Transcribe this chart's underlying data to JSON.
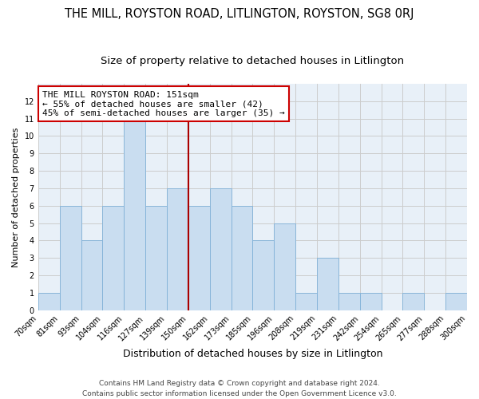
{
  "title": "THE MILL, ROYSTON ROAD, LITLINGTON, ROYSTON, SG8 0RJ",
  "subtitle": "Size of property relative to detached houses in Litlington",
  "xlabel": "Distribution of detached houses by size in Litlington",
  "ylabel": "Number of detached properties",
  "bin_edges": [
    "70sqm",
    "81sqm",
    "93sqm",
    "104sqm",
    "116sqm",
    "127sqm",
    "139sqm",
    "150sqm",
    "162sqm",
    "173sqm",
    "185sqm",
    "196sqm",
    "208sqm",
    "219sqm",
    "231sqm",
    "242sqm",
    "254sqm",
    "265sqm",
    "277sqm",
    "288sqm",
    "300sqm"
  ],
  "bar_values": [
    1,
    6,
    4,
    6,
    11,
    6,
    7,
    6,
    7,
    6,
    4,
    5,
    1,
    3,
    1,
    1,
    0,
    1,
    0,
    1
  ],
  "bar_color": "#c9ddf0",
  "bar_edge_color": "#7fb0d8",
  "highlight_line_index": 7,
  "highlight_line_color": "#aa0000",
  "annotation_text_line1": "THE MILL ROYSTON ROAD: 151sqm",
  "annotation_text_line2": "← 55% of detached houses are smaller (42)",
  "annotation_text_line3": "45% of semi-detached houses are larger (35) →",
  "annotation_box_color": "#cc0000",
  "ylim": [
    0,
    13
  ],
  "yticks": [
    0,
    1,
    2,
    3,
    4,
    5,
    6,
    7,
    8,
    9,
    10,
    11,
    12
  ],
  "grid_color": "#cccccc",
  "bg_color": "#e8f0f8",
  "footer_line1": "Contains HM Land Registry data © Crown copyright and database right 2024.",
  "footer_line2": "Contains public sector information licensed under the Open Government Licence v3.0.",
  "title_fontsize": 10.5,
  "subtitle_fontsize": 9.5,
  "xlabel_fontsize": 9,
  "ylabel_fontsize": 8,
  "tick_fontsize": 7,
  "annotation_fontsize": 8,
  "footer_fontsize": 6.5
}
